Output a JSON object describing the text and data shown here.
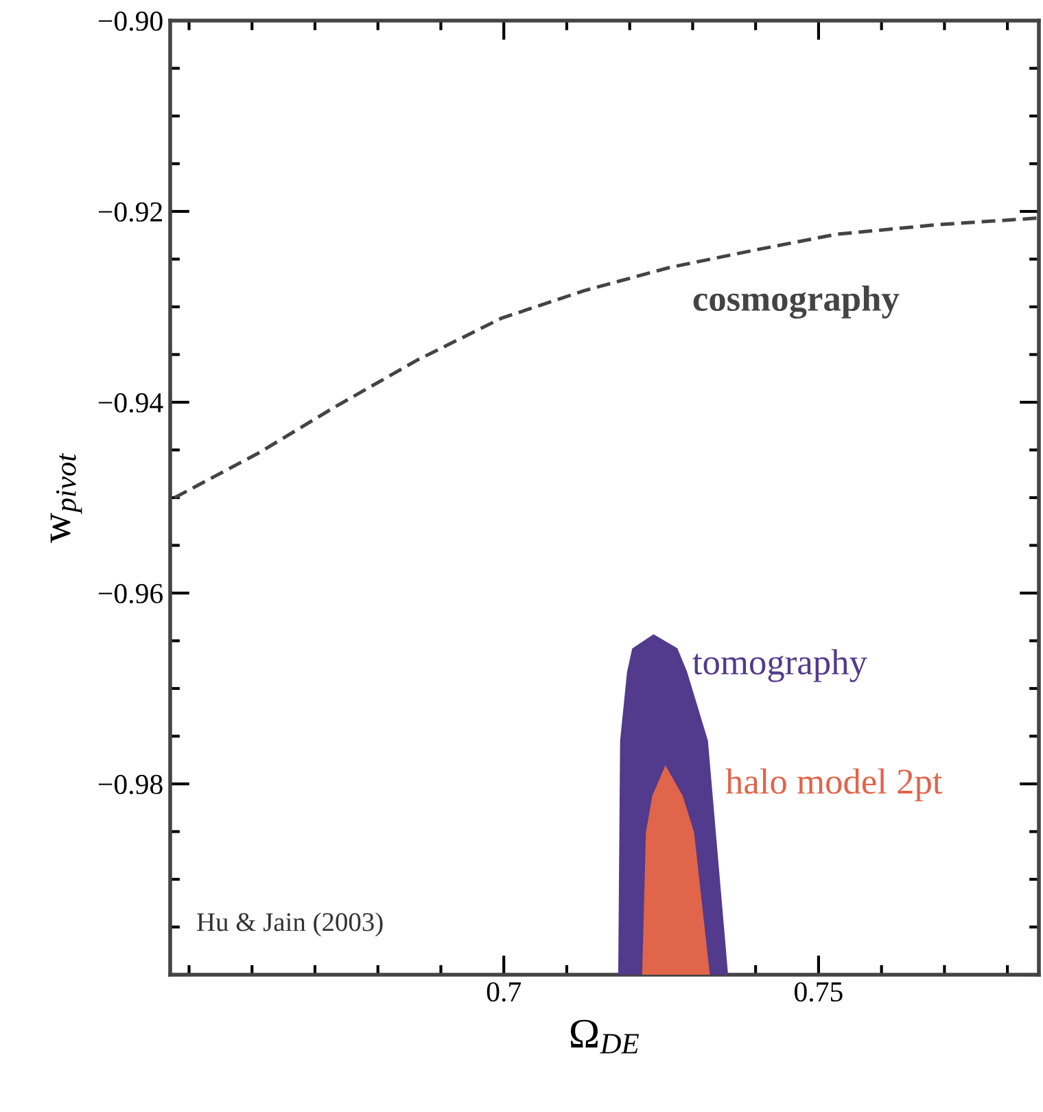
{
  "chart_data": {
    "type": "line",
    "xlabel": "Ω$_{DE}$",
    "ylabel": "w$_{pivot}$",
    "xlim": [
      0.647,
      0.785
    ],
    "ylim": [
      -1.0,
      -0.9
    ],
    "xticks": [
      0.7,
      0.75
    ],
    "yticks": [
      {
        "value": -1.0,
        "label": null
      },
      {
        "value": -0.98,
        "label": "−0.98"
      },
      {
        "value": -0.96,
        "label": "−0.96"
      },
      {
        "value": -0.94,
        "label": "−0.94"
      },
      {
        "value": -0.92,
        "label": "−0.92"
      },
      {
        "value": -0.9,
        "label": "−0.90"
      }
    ],
    "grid": false,
    "legend": false,
    "series": [
      {
        "name": "cosmography",
        "line_style": "dashed",
        "color": "#444444",
        "x": [
          0.6477,
          0.6611,
          0.6729,
          0.6862,
          0.6996,
          0.7128,
          0.7262,
          0.7395,
          0.7528,
          0.7687,
          0.7848
        ],
        "values": [
          -0.95,
          -0.9453,
          -0.9406,
          -0.9356,
          -0.9312,
          -0.9283,
          -0.9259,
          -0.9241,
          -0.9224,
          -0.9214,
          -0.9207
        ]
      },
      {
        "name": "tomography",
        "type": "area",
        "color": "#523a8c",
        "x": [
          0.7184,
          0.7187,
          0.7198,
          0.7206,
          0.7238,
          0.7274,
          0.7289,
          0.7322,
          0.7354
        ],
        "values": [
          -1.0,
          -0.9755,
          -0.9683,
          -0.9659,
          -0.9645,
          -0.9659,
          -0.9683,
          -0.9755,
          -1.0
        ]
      },
      {
        "name": "halo model 2pt",
        "type": "area",
        "color": "#e0654a",
        "x": [
          0.7222,
          0.7228,
          0.7238,
          0.7257,
          0.7282,
          0.73,
          0.7325
        ],
        "values": [
          -1.0,
          -0.9851,
          -0.9813,
          -0.9784,
          -0.9813,
          -0.9851,
          -1.0
        ]
      }
    ],
    "annotations": [
      "Hu & Jain (2003)"
    ]
  }
}
